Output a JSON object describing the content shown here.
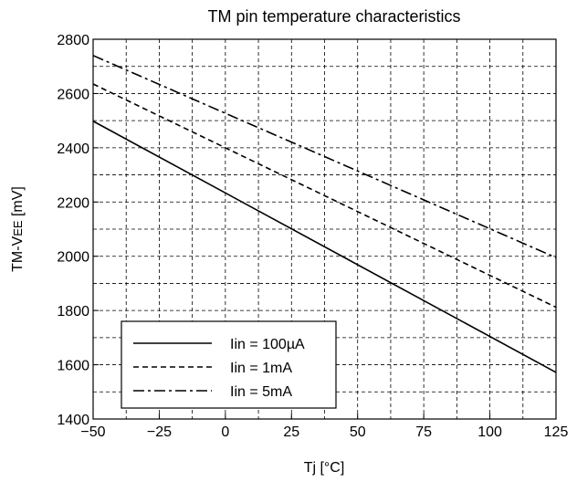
{
  "chart_data": {
    "type": "line",
    "title": "TM pin temperature characteristics",
    "xlabel": "Tj [°C]",
    "ylabel_main": "TM-V",
    "ylabel_sub": "EE",
    "ylabel_unit": " [mV]",
    "xlim": [
      -50,
      125
    ],
    "ylim": [
      1400,
      2800
    ],
    "xticks": [
      -50,
      -25,
      0,
      25,
      50,
      75,
      100,
      125
    ],
    "xtick_labels": [
      "−50",
      "−25",
      "0",
      "25",
      "50",
      "75",
      "100",
      "125"
    ],
    "yticks": [
      1400,
      1600,
      1800,
      2000,
      2200,
      2400,
      2600,
      2800
    ],
    "ytick_labels": [
      "1400",
      "1600",
      "1800",
      "2000",
      "2200",
      "2400",
      "2600",
      "2800"
    ],
    "grid": true,
    "legend_position": "bottom-left",
    "series": [
      {
        "name": "Iin = 100µA",
        "style": "solid",
        "x": [
          -50,
          125
        ],
        "y": [
          2498,
          1572
        ]
      },
      {
        "name": "Iin = 1mA",
        "style": "dashed",
        "x": [
          -50,
          125
        ],
        "y": [
          2635,
          1812
        ]
      },
      {
        "name": "Iin = 5mA",
        "style": "dashdot",
        "x": [
          -50,
          125
        ],
        "y": [
          2740,
          1995
        ]
      }
    ]
  }
}
